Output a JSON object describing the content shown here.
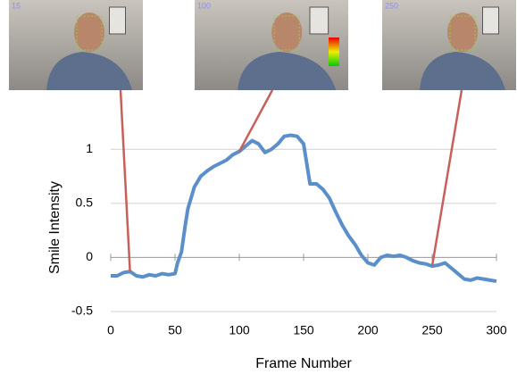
{
  "chart_data": {
    "type": "line",
    "x_label": "Frame Number",
    "y_label": "Smile Intensity",
    "frames": [
      15,
      100,
      250
    ],
    "x": [
      0,
      5,
      10,
      15,
      20,
      25,
      30,
      35,
      40,
      45,
      50,
      52,
      55,
      58,
      60,
      65,
      70,
      75,
      80,
      85,
      90,
      95,
      100,
      105,
      110,
      115,
      120,
      125,
      130,
      135,
      140,
      145,
      150,
      155,
      160,
      165,
      170,
      175,
      180,
      185,
      190,
      195,
      200,
      205,
      210,
      215,
      220,
      225,
      230,
      235,
      240,
      245,
      250,
      255,
      260,
      265,
      270,
      275,
      280,
      285,
      290,
      295,
      300
    ],
    "series": [
      {
        "color": "#5b8fc9",
        "values": [
          -0.17,
          -0.17,
          -0.14,
          -0.13,
          -0.17,
          -0.18,
          -0.16,
          -0.17,
          -0.15,
          -0.16,
          -0.15,
          -0.05,
          0.05,
          0.3,
          0.45,
          0.65,
          0.75,
          0.8,
          0.84,
          0.87,
          0.9,
          0.95,
          0.98,
          1.03,
          1.08,
          1.05,
          0.97,
          1.0,
          1.05,
          1.12,
          1.13,
          1.12,
          1.05,
          0.68,
          0.68,
          0.63,
          0.55,
          0.42,
          0.3,
          0.2,
          0.12,
          0.02,
          -0.05,
          -0.07,
          0.0,
          0.02,
          0.01,
          0.02,
          0.0,
          -0.03,
          -0.05,
          -0.06,
          -0.08,
          -0.07,
          -0.05,
          -0.1,
          -0.15,
          -0.2,
          -0.21,
          -0.19,
          -0.2,
          -0.21,
          -0.22
        ]
      }
    ],
    "xlim": [
      0,
      300
    ],
    "xticks": [
      0,
      50,
      100,
      150,
      200,
      250,
      300
    ],
    "ylim": [
      -0.5,
      1.2
    ],
    "yticks": [
      -0.5,
      0,
      0.5,
      1
    ],
    "grid": true,
    "connector_color": "#c8605a"
  }
}
